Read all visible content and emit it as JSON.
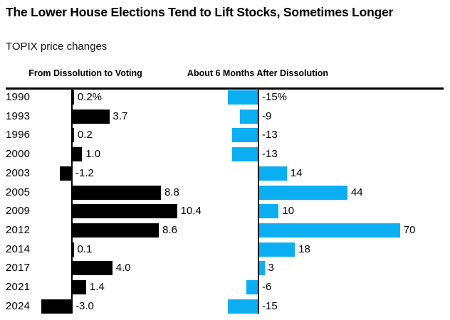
{
  "page": {
    "title": "The Lower House Elections Tend to Lift Stocks, Sometimes Longer",
    "subtitle": "TOPIX price changes"
  },
  "chart_data": {
    "type": "bar",
    "orientation": "horizontal",
    "unit": "%",
    "title": "The Lower House Elections Tend to Lift Stocks, Sometimes Longer",
    "subtitle": "TOPIX price changes",
    "categories": [
      "1990",
      "1993",
      "1996",
      "2000",
      "2003",
      "2005",
      "2009",
      "2012",
      "2014",
      "2017",
      "2021",
      "2024"
    ],
    "series": [
      {
        "name": "From Dissolution to Voting",
        "color": "#000000",
        "values": [
          0.2,
          3.7,
          0.2,
          1.0,
          -1.2,
          8.8,
          10.4,
          8.6,
          0.1,
          4.0,
          1.4,
          -3.0
        ],
        "labels": [
          "0.2%",
          "3.7",
          "0.2",
          "1.0",
          "-1.2",
          "8.8",
          "10.4",
          "8.6",
          "0.1",
          "4.0",
          "1.4",
          "-3.0"
        ]
      },
      {
        "name": "About 6 Months After Dissolution",
        "color": "#0caef2",
        "values": [
          -15,
          -9,
          -13,
          -13,
          14,
          44,
          10,
          70,
          18,
          3,
          -6,
          -15
        ],
        "labels": [
          "-15%",
          "-9",
          "-13",
          "-13",
          "14",
          "44",
          "10",
          "70",
          "18",
          "3",
          "-6",
          "-15"
        ]
      }
    ],
    "axes": {
      "zero_line": true,
      "grid": false,
      "value_labels": "at bar ends",
      "negative_labels_position": "right of zero line"
    }
  }
}
